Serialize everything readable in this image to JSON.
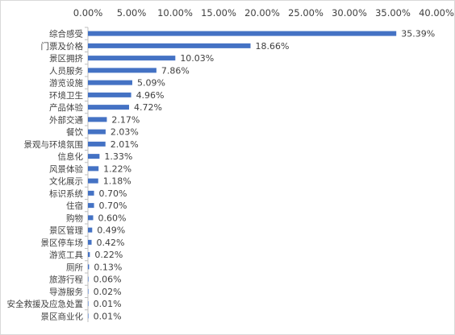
{
  "chart_data": {
    "type": "bar",
    "orientation": "horizontal",
    "title": "",
    "xlabel": "",
    "ylabel": "",
    "x_axis_position": "top",
    "xlim": [
      0,
      40
    ],
    "x_ticks": [
      "0.00%",
      "5.00%",
      "10.00%",
      "15.00%",
      "20.00%",
      "25.00%",
      "30.00%",
      "35.00%",
      "40.00%"
    ],
    "grid": false,
    "legend": "none",
    "bar_color": "#4472c4",
    "categories": [
      "综合感受",
      "门票及价格",
      "景区拥挤",
      "人员服务",
      "游览设施",
      "环境卫生",
      "产品体验",
      "外部交通",
      "餐饮",
      "景观与环境氛围",
      "信息化",
      "风景体验",
      "文化展示",
      "标识系统",
      "住宿",
      "购物",
      "景区管理",
      "景区停车场",
      "游览工具",
      "厕所",
      "旅游行程",
      "导游服务",
      "安全救援及应急处置",
      "景区商业化"
    ],
    "values": [
      35.39,
      18.66,
      10.03,
      7.86,
      5.09,
      4.96,
      4.72,
      2.17,
      2.03,
      2.01,
      1.33,
      1.22,
      1.18,
      0.7,
      0.7,
      0.6,
      0.49,
      0.42,
      0.22,
      0.13,
      0.06,
      0.02,
      0.01,
      0.01
    ],
    "data_labels": [
      "35.39%",
      "18.66%",
      "10.03%",
      "7.86%",
      "5.09%",
      "4.96%",
      "4.72%",
      "2.17%",
      "2.03%",
      "2.01%",
      "1.33%",
      "1.22%",
      "1.18%",
      "0.70%",
      "0.70%",
      "0.60%",
      "0.49%",
      "0.42%",
      "0.22%",
      "0.13%",
      "0.06%",
      "0.02%",
      "0.01%",
      "0.01%"
    ]
  }
}
